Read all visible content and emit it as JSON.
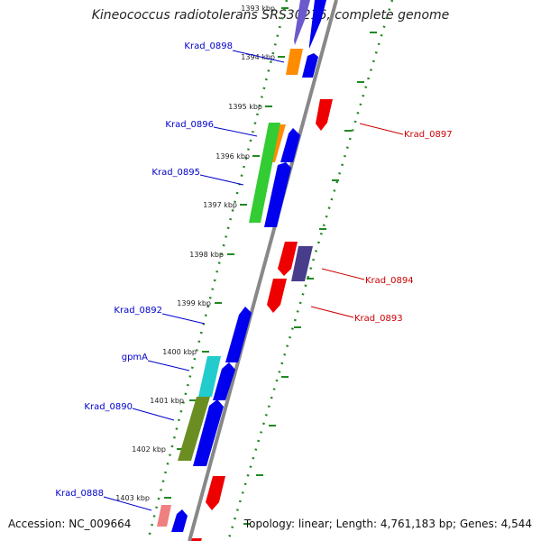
{
  "title": "Kineococcus radiotolerans SRS30216, complete genome",
  "footer": {
    "accession": "Accession: NC_009664",
    "summary": "Topology: linear; Length: 4,761,183 bp; Genes: 4,544"
  },
  "colors": {
    "backbone": "#888888",
    "tick": "#228822",
    "forward_label": "#0000cc",
    "reverse_label": "#cc0000"
  },
  "kbp_ticks": [
    "1393 kbp",
    "1394 kbp",
    "1395 kbp",
    "1396 kbp",
    "1397 kbp",
    "1398 kbp",
    "1399 kbp",
    "1400 kbp",
    "1401 kbp",
    "1402 kbp",
    "1403 kbp"
  ],
  "labels_left": [
    "Krad_0898",
    "Krad_0896",
    "Krad_0895",
    "Krad_0892",
    "gpmA",
    "Krad_0890",
    "Krad_0888"
  ],
  "labels_right": [
    "Krad_0897",
    "Krad_0894",
    "Krad_0893"
  ]
}
